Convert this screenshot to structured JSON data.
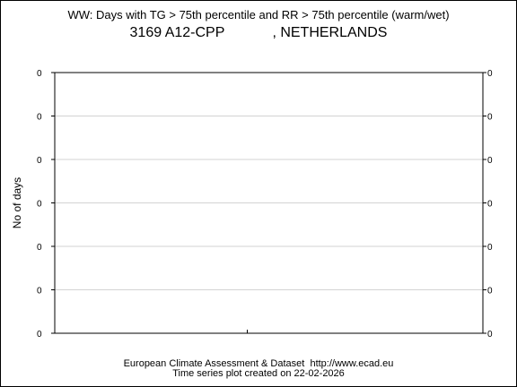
{
  "chart_data": {
    "type": "line",
    "title": "WW: Days with TG > 75th percentile and RR > 75th percentile (warm/wet)",
    "station": {
      "code": "3169",
      "name": "A12-CPP",
      "country": ", NETHERLANDS"
    },
    "ylabel": "No of days",
    "xlabel": "",
    "y_tick_labels": [
      "0",
      "0",
      "0",
      "0",
      "0",
      "0",
      "0"
    ],
    "x": [],
    "series": [],
    "grid": true,
    "legend": "none"
  },
  "footer": {
    "line1": "European Climate Assessment & Dataset  http://www.ecad.eu",
    "line2": "Time series plot created on 22-02-2026"
  },
  "colors": {
    "frame": "#000000",
    "grid": "#d3d3d3",
    "background": "#ffffff"
  }
}
